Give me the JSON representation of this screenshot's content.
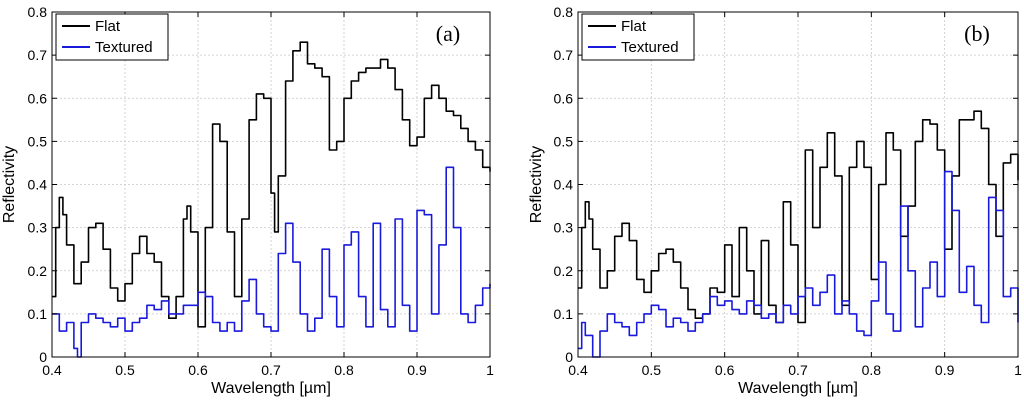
{
  "colors": {
    "flat": "#000000",
    "textured": "#1a1adb",
    "grid": "#c8c8c8",
    "axis": "#000000"
  },
  "chart_data": [
    {
      "type": "line",
      "panel_label": "(a)",
      "xlabel": "Wavelength [µm]",
      "ylabel": "Reflectivity",
      "xlim": [
        0.4,
        1.0
      ],
      "ylim": [
        0,
        0.8
      ],
      "xticks": [
        "0.4",
        "0.5",
        "0.6",
        "0.7",
        "0.8",
        "0.9",
        "1"
      ],
      "yticks": [
        "0",
        "0.1",
        "0.2",
        "0.3",
        "0.4",
        "0.5",
        "0.6",
        "0.7",
        "0.8"
      ],
      "grid": true,
      "legend": "top-left",
      "series": [
        {
          "name": "Flat",
          "color": "#000000",
          "x": [
            0.4,
            0.405,
            0.41,
            0.415,
            0.42,
            0.43,
            0.44,
            0.45,
            0.46,
            0.47,
            0.48,
            0.49,
            0.5,
            0.51,
            0.52,
            0.53,
            0.54,
            0.55,
            0.56,
            0.57,
            0.58,
            0.585,
            0.59,
            0.6,
            0.61,
            0.62,
            0.63,
            0.64,
            0.65,
            0.66,
            0.67,
            0.68,
            0.69,
            0.7,
            0.705,
            0.71,
            0.72,
            0.73,
            0.74,
            0.75,
            0.76,
            0.77,
            0.78,
            0.79,
            0.8,
            0.81,
            0.82,
            0.83,
            0.84,
            0.85,
            0.86,
            0.87,
            0.88,
            0.89,
            0.9,
            0.91,
            0.92,
            0.93,
            0.94,
            0.95,
            0.96,
            0.97,
            0.98,
            0.99,
            1.0
          ],
          "y": [
            0.14,
            0.3,
            0.37,
            0.33,
            0.26,
            0.17,
            0.22,
            0.3,
            0.31,
            0.25,
            0.16,
            0.13,
            0.17,
            0.24,
            0.28,
            0.24,
            0.22,
            0.14,
            0.09,
            0.14,
            0.32,
            0.35,
            0.29,
            0.07,
            0.3,
            0.54,
            0.5,
            0.29,
            0.14,
            0.32,
            0.55,
            0.61,
            0.6,
            0.38,
            0.29,
            0.42,
            0.64,
            0.71,
            0.73,
            0.68,
            0.67,
            0.65,
            0.48,
            0.5,
            0.6,
            0.64,
            0.66,
            0.67,
            0.67,
            0.69,
            0.67,
            0.62,
            0.55,
            0.49,
            0.51,
            0.6,
            0.63,
            0.6,
            0.57,
            0.56,
            0.53,
            0.5,
            0.48,
            0.44,
            0.43
          ]
        },
        {
          "name": "Textured",
          "color": "#1a1adb",
          "x": [
            0.4,
            0.41,
            0.42,
            0.43,
            0.435,
            0.44,
            0.45,
            0.46,
            0.47,
            0.48,
            0.49,
            0.5,
            0.51,
            0.52,
            0.53,
            0.54,
            0.55,
            0.56,
            0.57,
            0.58,
            0.59,
            0.6,
            0.61,
            0.62,
            0.63,
            0.64,
            0.65,
            0.66,
            0.67,
            0.68,
            0.69,
            0.7,
            0.71,
            0.72,
            0.73,
            0.74,
            0.75,
            0.76,
            0.77,
            0.78,
            0.79,
            0.8,
            0.81,
            0.82,
            0.83,
            0.84,
            0.85,
            0.86,
            0.87,
            0.88,
            0.89,
            0.9,
            0.91,
            0.92,
            0.93,
            0.94,
            0.95,
            0.96,
            0.97,
            0.98,
            0.99,
            1.0
          ],
          "y": [
            0.1,
            0.06,
            0.08,
            0.02,
            0.0,
            0.08,
            0.1,
            0.09,
            0.08,
            0.07,
            0.09,
            0.06,
            0.08,
            0.09,
            0.12,
            0.11,
            0.13,
            0.1,
            0.1,
            0.12,
            0.12,
            0.15,
            0.14,
            0.08,
            0.06,
            0.08,
            0.06,
            0.13,
            0.18,
            0.1,
            0.07,
            0.06,
            0.24,
            0.31,
            0.22,
            0.1,
            0.06,
            0.09,
            0.25,
            0.14,
            0.07,
            0.26,
            0.29,
            0.14,
            0.07,
            0.31,
            0.11,
            0.07,
            0.32,
            0.12,
            0.06,
            0.34,
            0.33,
            0.1,
            0.26,
            0.44,
            0.3,
            0.1,
            0.08,
            0.12,
            0.16,
            0.17
          ]
        }
      ]
    },
    {
      "type": "line",
      "panel_label": "(b)",
      "xlabel": "Wavelength [µm]",
      "ylabel": "Reflectivity",
      "xlim": [
        0.4,
        1.0
      ],
      "ylim": [
        0,
        0.8
      ],
      "xticks": [
        "0.4",
        "0.5",
        "0.6",
        "0.7",
        "0.8",
        "0.9",
        "1"
      ],
      "yticks": [
        "0",
        "0.1",
        "0.2",
        "0.3",
        "0.4",
        "0.5",
        "0.6",
        "0.7",
        "0.8"
      ],
      "grid": true,
      "legend": "top-left",
      "series": [
        {
          "name": "Flat",
          "color": "#000000",
          "x": [
            0.4,
            0.405,
            0.41,
            0.415,
            0.42,
            0.43,
            0.44,
            0.45,
            0.46,
            0.47,
            0.48,
            0.49,
            0.5,
            0.51,
            0.52,
            0.53,
            0.54,
            0.55,
            0.56,
            0.57,
            0.58,
            0.59,
            0.6,
            0.61,
            0.62,
            0.63,
            0.64,
            0.65,
            0.66,
            0.67,
            0.68,
            0.69,
            0.7,
            0.71,
            0.72,
            0.73,
            0.74,
            0.75,
            0.76,
            0.77,
            0.78,
            0.79,
            0.8,
            0.81,
            0.82,
            0.83,
            0.84,
            0.85,
            0.86,
            0.87,
            0.88,
            0.89,
            0.9,
            0.91,
            0.92,
            0.93,
            0.94,
            0.95,
            0.96,
            0.97,
            0.98,
            0.99,
            1.0
          ],
          "y": [
            0.16,
            0.3,
            0.36,
            0.32,
            0.25,
            0.16,
            0.2,
            0.28,
            0.31,
            0.27,
            0.18,
            0.15,
            0.2,
            0.24,
            0.25,
            0.22,
            0.16,
            0.11,
            0.09,
            0.1,
            0.16,
            0.15,
            0.26,
            0.14,
            0.3,
            0.2,
            0.1,
            0.27,
            0.12,
            0.08,
            0.36,
            0.26,
            0.08,
            0.48,
            0.3,
            0.44,
            0.52,
            0.42,
            0.12,
            0.44,
            0.5,
            0.44,
            0.18,
            0.4,
            0.52,
            0.48,
            0.28,
            0.35,
            0.5,
            0.55,
            0.54,
            0.48,
            0.25,
            0.42,
            0.55,
            0.55,
            0.57,
            0.53,
            0.4,
            0.28,
            0.45,
            0.47,
            0.41
          ]
        },
        {
          "name": "Textured",
          "color": "#1a1adb",
          "x": [
            0.4,
            0.405,
            0.41,
            0.42,
            0.43,
            0.44,
            0.45,
            0.46,
            0.47,
            0.48,
            0.49,
            0.5,
            0.51,
            0.52,
            0.53,
            0.54,
            0.55,
            0.56,
            0.57,
            0.58,
            0.59,
            0.6,
            0.61,
            0.62,
            0.63,
            0.64,
            0.65,
            0.66,
            0.67,
            0.68,
            0.69,
            0.7,
            0.71,
            0.72,
            0.73,
            0.74,
            0.75,
            0.76,
            0.77,
            0.78,
            0.79,
            0.8,
            0.81,
            0.82,
            0.83,
            0.84,
            0.85,
            0.86,
            0.87,
            0.88,
            0.89,
            0.9,
            0.91,
            0.92,
            0.93,
            0.94,
            0.95,
            0.96,
            0.97,
            0.98,
            0.99,
            1.0
          ],
          "y": [
            0.02,
            0.08,
            0.05,
            0.0,
            0.06,
            0.1,
            0.08,
            0.07,
            0.05,
            0.08,
            0.1,
            0.12,
            0.11,
            0.07,
            0.09,
            0.08,
            0.06,
            0.08,
            0.1,
            0.14,
            0.12,
            0.13,
            0.11,
            0.1,
            0.13,
            0.12,
            0.09,
            0.1,
            0.08,
            0.12,
            0.1,
            0.14,
            0.16,
            0.12,
            0.15,
            0.19,
            0.1,
            0.13,
            0.1,
            0.06,
            0.05,
            0.13,
            0.22,
            0.1,
            0.06,
            0.35,
            0.2,
            0.07,
            0.16,
            0.22,
            0.14,
            0.43,
            0.34,
            0.15,
            0.21,
            0.12,
            0.08,
            0.37,
            0.34,
            0.14,
            0.16,
            0.08
          ]
        }
      ]
    }
  ]
}
